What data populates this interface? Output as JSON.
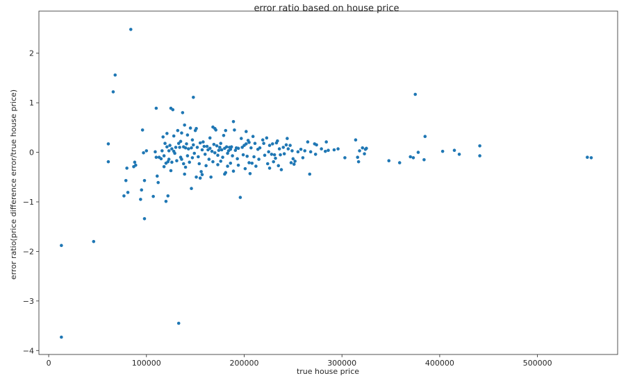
{
  "chart_data": {
    "type": "scatter",
    "title": "error ratio based on house price",
    "xlabel": "true house price",
    "ylabel": "error ratio(price difference error/true house price)",
    "xlim": [
      -10000,
      582000
    ],
    "ylim": [
      -4.08,
      2.85
    ],
    "xticks": [
      0,
      100000,
      200000,
      300000,
      400000,
      500000
    ],
    "xtick_labels": [
      "0",
      "100000",
      "200000",
      "300000",
      "400000",
      "500000"
    ],
    "yticks": [
      -4,
      -3,
      -2,
      -1,
      0,
      1,
      2
    ],
    "ytick_labels": [
      "−4",
      "−3",
      "−2",
      "−1",
      "0",
      "1",
      "2"
    ],
    "grid": false,
    "marker_color": "#1f77b4",
    "points": [
      [
        13000,
        -1.88
      ],
      [
        13000,
        -3.73
      ],
      [
        46000,
        -1.8
      ],
      [
        61000,
        0.17
      ],
      [
        61000,
        -0.19
      ],
      [
        66000,
        1.22
      ],
      [
        68000,
        1.56
      ],
      [
        84000,
        2.48
      ],
      [
        77000,
        -0.88
      ],
      [
        79000,
        -0.57
      ],
      [
        80000,
        -0.32
      ],
      [
        81000,
        -0.81
      ],
      [
        87000,
        -0.29
      ],
      [
        88000,
        -0.2
      ],
      [
        89000,
        -0.26
      ],
      [
        94000,
        -0.95
      ],
      [
        95000,
        -0.76
      ],
      [
        96000,
        0.45
      ],
      [
        97000,
        -0.01
      ],
      [
        98000,
        -0.57
      ],
      [
        98000,
        -1.34
      ],
      [
        100000,
        0.03
      ],
      [
        107000,
        -0.89
      ],
      [
        109000,
        0.01
      ],
      [
        110000,
        0.89
      ],
      [
        110000,
        -0.1
      ],
      [
        111000,
        -0.48
      ],
      [
        112000,
        -0.61
      ],
      [
        113000,
        -0.1
      ],
      [
        115000,
        -0.13
      ],
      [
        116000,
        0.03
      ],
      [
        117000,
        0.31
      ],
      [
        118000,
        -0.07
      ],
      [
        118000,
        -0.29
      ],
      [
        119000,
        0.18
      ],
      [
        120000,
        -0.99
      ],
      [
        120000,
        -0.22
      ],
      [
        121000,
        0.38
      ],
      [
        121000,
        0.11
      ],
      [
        122000,
        -0.19
      ],
      [
        122000,
        -0.88
      ],
      [
        123000,
        0.03
      ],
      [
        123000,
        -0.14
      ],
      [
        124000,
        0.14
      ],
      [
        125000,
        -0.37
      ],
      [
        125000,
        0.89
      ],
      [
        126000,
        0.07
      ],
      [
        126000,
        -0.2
      ],
      [
        127000,
        0.86
      ],
      [
        128000,
        0.33
      ],
      [
        128000,
        0.02
      ],
      [
        129000,
        -0.02
      ],
      [
        130000,
        0.1
      ],
      [
        131000,
        -0.17
      ],
      [
        132000,
        0.44
      ],
      [
        133000,
        0.18
      ],
      [
        133000,
        -3.45
      ],
      [
        134000,
        0.1
      ],
      [
        135000,
        -0.1
      ],
      [
        135000,
        0.22
      ],
      [
        136000,
        -0.14
      ],
      [
        136000,
        0.39
      ],
      [
        137000,
        0.8
      ],
      [
        138000,
        0.11
      ],
      [
        138000,
        -0.23
      ],
      [
        139000,
        0.55
      ],
      [
        139000,
        -0.44
      ],
      [
        140000,
        0.09
      ],
      [
        140000,
        -0.3
      ],
      [
        141000,
        0.17
      ],
      [
        142000,
        -0.07
      ],
      [
        142000,
        0.35
      ],
      [
        143000,
        0.07
      ],
      [
        144000,
        -0.2
      ],
      [
        145000,
        0.49
      ],
      [
        146000,
        -0.73
      ],
      [
        146000,
        0.09
      ],
      [
        147000,
        0.25
      ],
      [
        147000,
        -0.11
      ],
      [
        148000,
        0.15
      ],
      [
        148000,
        1.11
      ],
      [
        149000,
        -0.02
      ],
      [
        150000,
        0.44
      ],
      [
        151000,
        -0.5
      ],
      [
        151000,
        0.48
      ],
      [
        152000,
        0.1
      ],
      [
        153000,
        -0.09
      ],
      [
        154000,
        -0.23
      ],
      [
        155000,
        -0.52
      ],
      [
        155000,
        0.19
      ],
      [
        156000,
        -0.39
      ],
      [
        157000,
        0.05
      ],
      [
        157000,
        -0.45
      ],
      [
        158000,
        0.21
      ],
      [
        159000,
        0.12
      ],
      [
        160000,
        -0.04
      ],
      [
        161000,
        -0.27
      ],
      [
        162000,
        0.12
      ],
      [
        163000,
        0.05
      ],
      [
        164000,
        -0.14
      ],
      [
        165000,
        0.29
      ],
      [
        165000,
        0.08
      ],
      [
        166000,
        -0.5
      ],
      [
        167000,
        0.02
      ],
      [
        168000,
        0.51
      ],
      [
        168000,
        -0.19
      ],
      [
        169000,
        0.16
      ],
      [
        170000,
        0.48
      ],
      [
        170000,
        -0.01
      ],
      [
        171000,
        0.45
      ],
      [
        172000,
        0.13
      ],
      [
        173000,
        -0.25
      ],
      [
        173000,
        -0.06
      ],
      [
        174000,
        0.04
      ],
      [
        175000,
        0.1
      ],
      [
        176000,
        0.18
      ],
      [
        176000,
        -0.18
      ],
      [
        177000,
        0.05
      ],
      [
        178000,
        -0.1
      ],
      [
        179000,
        0.34
      ],
      [
        180000,
        0.08
      ],
      [
        180000,
        -0.44
      ],
      [
        181000,
        0.44
      ],
      [
        181000,
        -0.41
      ],
      [
        182000,
        0.11
      ],
      [
        183000,
        -0.28
      ],
      [
        183000,
        -0.02
      ],
      [
        184000,
        0.03
      ],
      [
        185000,
        0.1
      ],
      [
        186000,
        0.06
      ],
      [
        186000,
        -0.22
      ],
      [
        187000,
        0.11
      ],
      [
        188000,
        -0.07
      ],
      [
        189000,
        0.62
      ],
      [
        189000,
        -0.38
      ],
      [
        190000,
        0.45
      ],
      [
        191000,
        0.04
      ],
      [
        192000,
        0.09
      ],
      [
        193000,
        -0.13
      ],
      [
        194000,
        0.08
      ],
      [
        194000,
        -0.26
      ],
      [
        196000,
        -0.91
      ],
      [
        197000,
        0.28
      ],
      [
        198000,
        0.1
      ],
      [
        199000,
        -0.05
      ],
      [
        200000,
        0.14
      ],
      [
        201000,
        -0.33
      ],
      [
        202000,
        0.42
      ],
      [
        202000,
        0.17
      ],
      [
        203000,
        -0.08
      ],
      [
        204000,
        0.24
      ],
      [
        205000,
        0.2
      ],
      [
        205000,
        -0.21
      ],
      [
        206000,
        -0.43
      ],
      [
        207000,
        0.09
      ],
      [
        208000,
        -0.22
      ],
      [
        209000,
        0.32
      ],
      [
        210000,
        -0.09
      ],
      [
        211000,
        0.18
      ],
      [
        212000,
        -0.28
      ],
      [
        214000,
        0.06
      ],
      [
        215000,
        -0.14
      ],
      [
        216000,
        0.09
      ],
      [
        219000,
        0.25
      ],
      [
        220000,
        0.18
      ],
      [
        221000,
        -0.06
      ],
      [
        223000,
        0.29
      ],
      [
        224000,
        -0.23
      ],
      [
        225000,
        0.01
      ],
      [
        226000,
        0.14
      ],
      [
        226000,
        -0.32
      ],
      [
        228000,
        -0.04
      ],
      [
        229000,
        0.17
      ],
      [
        230000,
        -0.19
      ],
      [
        231000,
        -0.05
      ],
      [
        232000,
        -0.12
      ],
      [
        233000,
        0.19
      ],
      [
        234000,
        0.23
      ],
      [
        235000,
        -0.27
      ],
      [
        236000,
        0.07
      ],
      [
        237000,
        -0.05
      ],
      [
        238000,
        -0.35
      ],
      [
        240000,
        0.1
      ],
      [
        241000,
        -0.03
      ],
      [
        243000,
        0.15
      ],
      [
        244000,
        0.28
      ],
      [
        245000,
        0.07
      ],
      [
        247000,
        0.14
      ],
      [
        248000,
        -0.21
      ],
      [
        249000,
        0.03
      ],
      [
        250000,
        -0.13
      ],
      [
        251000,
        -0.24
      ],
      [
        252000,
        -0.18
      ],
      [
        255000,
        0.01
      ],
      [
        258000,
        0.06
      ],
      [
        260000,
        -0.11
      ],
      [
        262000,
        0.03
      ],
      [
        265000,
        0.21
      ],
      [
        267000,
        -0.44
      ],
      [
        268000,
        0.01
      ],
      [
        272000,
        0.17
      ],
      [
        273000,
        -0.04
      ],
      [
        274000,
        0.15
      ],
      [
        279000,
        0.07
      ],
      [
        283000,
        0.02
      ],
      [
        284000,
        0.21
      ],
      [
        286000,
        0.04
      ],
      [
        292000,
        0.05
      ],
      [
        296000,
        0.07
      ],
      [
        303000,
        -0.11
      ],
      [
        314000,
        0.25
      ],
      [
        316000,
        -0.1
      ],
      [
        317000,
        -0.19
      ],
      [
        318000,
        0.03
      ],
      [
        321000,
        0.09
      ],
      [
        323000,
        -0.03
      ],
      [
        324000,
        0.06
      ],
      [
        325000,
        0.08
      ],
      [
        348000,
        -0.17
      ],
      [
        359000,
        -0.21
      ],
      [
        370000,
        -0.09
      ],
      [
        373000,
        -0.11
      ],
      [
        375000,
        1.17
      ],
      [
        378000,
        0.0
      ],
      [
        384000,
        -0.15
      ],
      [
        385000,
        0.32
      ],
      [
        403000,
        0.02
      ],
      [
        415000,
        0.04
      ],
      [
        420000,
        -0.04
      ],
      [
        441000,
        0.13
      ],
      [
        441000,
        -0.07
      ],
      [
        551000,
        -0.1
      ],
      [
        555000,
        -0.11
      ]
    ]
  }
}
